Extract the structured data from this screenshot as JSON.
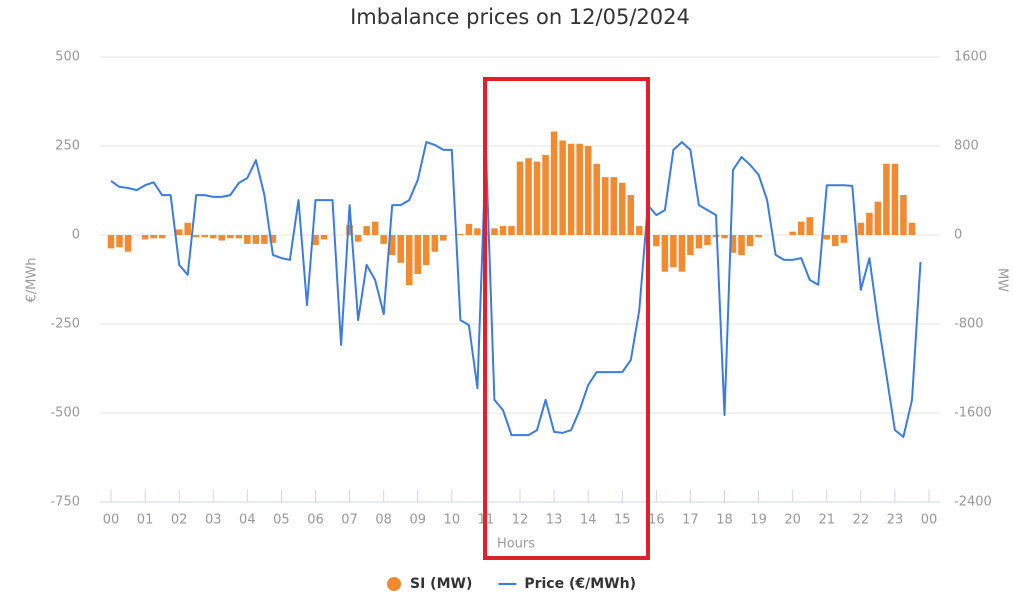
{
  "chart_data": {
    "type": "combo",
    "title": "Imbalance prices on 12/05/2024",
    "x_label": "Hours",
    "y_label": "€/MWh",
    "y2_label": "MW",
    "x": [
      0,
      0.25,
      0.5,
      0.75,
      1,
      1.25,
      1.5,
      1.75,
      2,
      2.25,
      2.5,
      2.75,
      3,
      3.25,
      3.5,
      3.75,
      4,
      4.25,
      4.5,
      4.75,
      5,
      5.25,
      5.5,
      5.75,
      6,
      6.25,
      6.5,
      6.75,
      7,
      7.25,
      7.5,
      7.75,
      8,
      8.25,
      8.5,
      8.75,
      9,
      9.25,
      9.5,
      9.75,
      10,
      10.25,
      10.5,
      10.75,
      11,
      11.25,
      11.5,
      11.75,
      12,
      12.25,
      12.5,
      12.75,
      13,
      13.25,
      13.5,
      13.75,
      14,
      14.25,
      14.5,
      14.75,
      15,
      15.25,
      15.5,
      15.75,
      16,
      16.25,
      16.5,
      16.75,
      17,
      17.25,
      17.5,
      17.75,
      18,
      18.25,
      18.5,
      18.75,
      19,
      19.25,
      19.5,
      19.75,
      20,
      20.25,
      20.5,
      20.75,
      21,
      21.25,
      21.5,
      21.75,
      22,
      22.25,
      22.5,
      22.75,
      23,
      23.25,
      23.5,
      23.75
    ],
    "series": [
      {
        "name": "SI (MW)",
        "type": "bar",
        "axis": "y2",
        "color": "#f28a30",
        "values": [
          -120,
          -110,
          -150,
          0,
          -40,
          -30,
          -30,
          0,
          50,
          110,
          -20,
          -20,
          -30,
          -50,
          -30,
          -30,
          -80,
          -80,
          -80,
          -70,
          0,
          0,
          0,
          0,
          -90,
          -40,
          0,
          0,
          90,
          -60,
          80,
          120,
          -80,
          -180,
          -250,
          -450,
          -350,
          -270,
          -150,
          -50,
          0,
          10,
          100,
          60,
          20,
          60,
          80,
          80,
          660,
          690,
          660,
          720,
          930,
          850,
          820,
          820,
          800,
          640,
          520,
          520,
          470,
          360,
          80,
          0,
          -100,
          -330,
          -290,
          -330,
          -180,
          -120,
          -90,
          -20,
          -30,
          -160,
          -180,
          -100,
          -20,
          0,
          0,
          0,
          30,
          120,
          160,
          0,
          -40,
          -100,
          -70,
          0,
          110,
          200,
          300,
          640,
          640,
          360,
          110,
          0
        ]
      },
      {
        "name": "Price (€/MWh)",
        "type": "line",
        "axis": "y",
        "color": "#3b7ddd",
        "values": [
          152,
          135,
          132,
          126,
          140,
          148,
          112,
          112,
          -84,
          -112,
          112,
          112,
          107,
          107,
          112,
          146,
          160,
          210,
          112,
          -56,
          -65,
          -70,
          98,
          -197,
          98,
          98,
          98,
          -309,
          84,
          -239,
          -84,
          -126,
          -222,
          84,
          84,
          98,
          155,
          261,
          253,
          239,
          239,
          -239,
          -253,
          -430,
          239,
          -463,
          -492,
          -562,
          -562,
          -562,
          -548,
          -463,
          -553,
          -556,
          -548,
          -492,
          -421,
          -385,
          -385,
          -385,
          -385,
          -351,
          -211,
          84,
          56,
          70,
          239,
          261,
          239,
          84,
          70,
          56,
          -506,
          183,
          219,
          197,
          169,
          98,
          -56,
          -70,
          -70,
          -65,
          -126,
          -140,
          140,
          140,
          140,
          138,
          -154,
          -65,
          -239,
          -393,
          -548,
          -567,
          -463,
          -76
        ]
      }
    ],
    "xlim": [
      0,
      24
    ],
    "xticks": [
      {
        "value": 0,
        "label": "00"
      },
      {
        "value": 1,
        "label": "01"
      },
      {
        "value": 2,
        "label": "02"
      },
      {
        "value": 3,
        "label": "03"
      },
      {
        "value": 4,
        "label": "04"
      },
      {
        "value": 5,
        "label": "05"
      },
      {
        "value": 6,
        "label": "06"
      },
      {
        "value": 7,
        "label": "07"
      },
      {
        "value": 8,
        "label": "08"
      },
      {
        "value": 9,
        "label": "09"
      },
      10,
      11,
      12,
      13,
      14,
      15,
      16,
      17,
      18,
      19,
      20,
      21,
      22,
      23,
      {
        "value": 24,
        "label": "00"
      }
    ],
    "ylim": [
      -750,
      500
    ],
    "yticks": [
      -750,
      -500,
      -250,
      0,
      250,
      500
    ],
    "y2lim": [
      -2400,
      1600
    ],
    "y2ticks": [
      -2400,
      -1600,
      -800,
      0,
      800,
      1600
    ],
    "grid": true,
    "legend": "bottom"
  }
}
